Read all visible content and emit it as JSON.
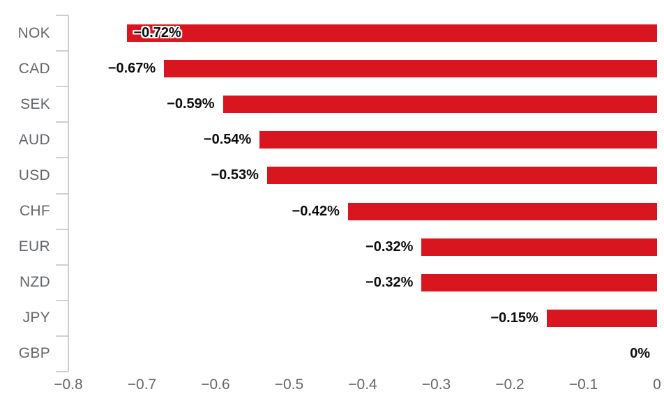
{
  "chart_data": {
    "type": "bar",
    "orientation": "horizontal",
    "title": "",
    "xlabel": "",
    "ylabel": "",
    "categories": [
      "NOK",
      "CAD",
      "SEK",
      "AUD",
      "USD",
      "CHF",
      "EUR",
      "NZD",
      "JPY",
      "GBP"
    ],
    "values": [
      -0.72,
      -0.67,
      -0.59,
      -0.54,
      -0.53,
      -0.42,
      -0.32,
      -0.32,
      -0.15,
      0
    ],
    "value_labels": [
      "−0.72%",
      "−0.67%",
      "−0.59%",
      "−0.54%",
      "−0.53%",
      "−0.42%",
      "−0.32%",
      "−0.32%",
      "−0.15%",
      "0%"
    ],
    "xlim": [
      -0.8,
      0
    ],
    "x_ticks": [
      -0.8,
      -0.7,
      -0.6,
      -0.5,
      -0.4,
      -0.3,
      -0.2,
      -0.1,
      0
    ],
    "x_tick_labels": [
      "−0.8",
      "−0.7",
      "−0.6",
      "−0.5",
      "−0.4",
      "−0.3",
      "−0.2",
      "−0.1",
      "0"
    ],
    "grid": false,
    "legend": false,
    "colors": {
      "bar": "#d9161f",
      "axis": "#ccd1d6",
      "category_label": "#63666a",
      "tick_label": "#63666a",
      "value_label": "#0d0d0d"
    }
  }
}
